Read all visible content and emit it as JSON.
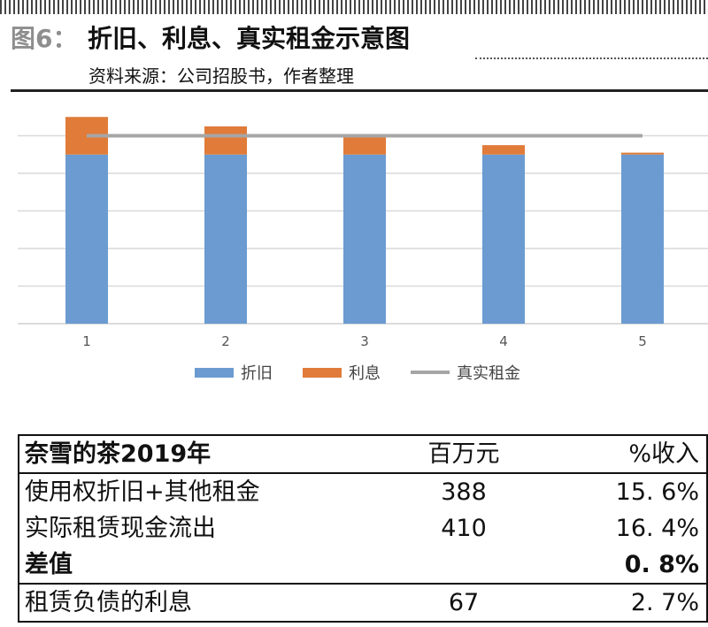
{
  "figure": {
    "label": "图6：",
    "title": "折旧、利息、真实租金示意图",
    "source": "资料来源：公司招股书，作者整理"
  },
  "chart_data": {
    "type": "bar",
    "stacked": true,
    "categories": [
      "1",
      "2",
      "3",
      "4",
      "5"
    ],
    "series": [
      {
        "name": "折旧",
        "kind": "bar",
        "color": "#6b9bd1",
        "values": [
          45,
          45,
          45,
          45,
          45
        ]
      },
      {
        "name": "利息",
        "kind": "bar",
        "color": "#e07b39",
        "values": [
          10,
          7.5,
          5,
          2.5,
          0.5
        ]
      },
      {
        "name": "真实租金",
        "kind": "line",
        "color": "#a6a6a6",
        "values": [
          50,
          50,
          50,
          50,
          50
        ]
      }
    ],
    "ylim": [
      0,
      60
    ],
    "y_gridlines": [
      10,
      20,
      30,
      40,
      50
    ],
    "y_ticks_shown": false,
    "legend": "bottom-center",
    "grid": true
  },
  "table": {
    "header": {
      "label": "奈雪的茶2019年",
      "unit": "百万元",
      "pct": "%收入"
    },
    "rows": [
      {
        "label": "使用权折旧+其他租金",
        "value": "388",
        "pct": "15. 6%",
        "bold": false
      },
      {
        "label": "实际租赁现金流出",
        "value": "410",
        "pct": "16. 4%",
        "bold": false
      },
      {
        "label": "差值",
        "value": "",
        "pct": "0. 8%",
        "bold": true
      },
      {
        "label": "租赁负债的利息",
        "value": "67",
        "pct": "2. 7%",
        "bold": false
      }
    ]
  }
}
